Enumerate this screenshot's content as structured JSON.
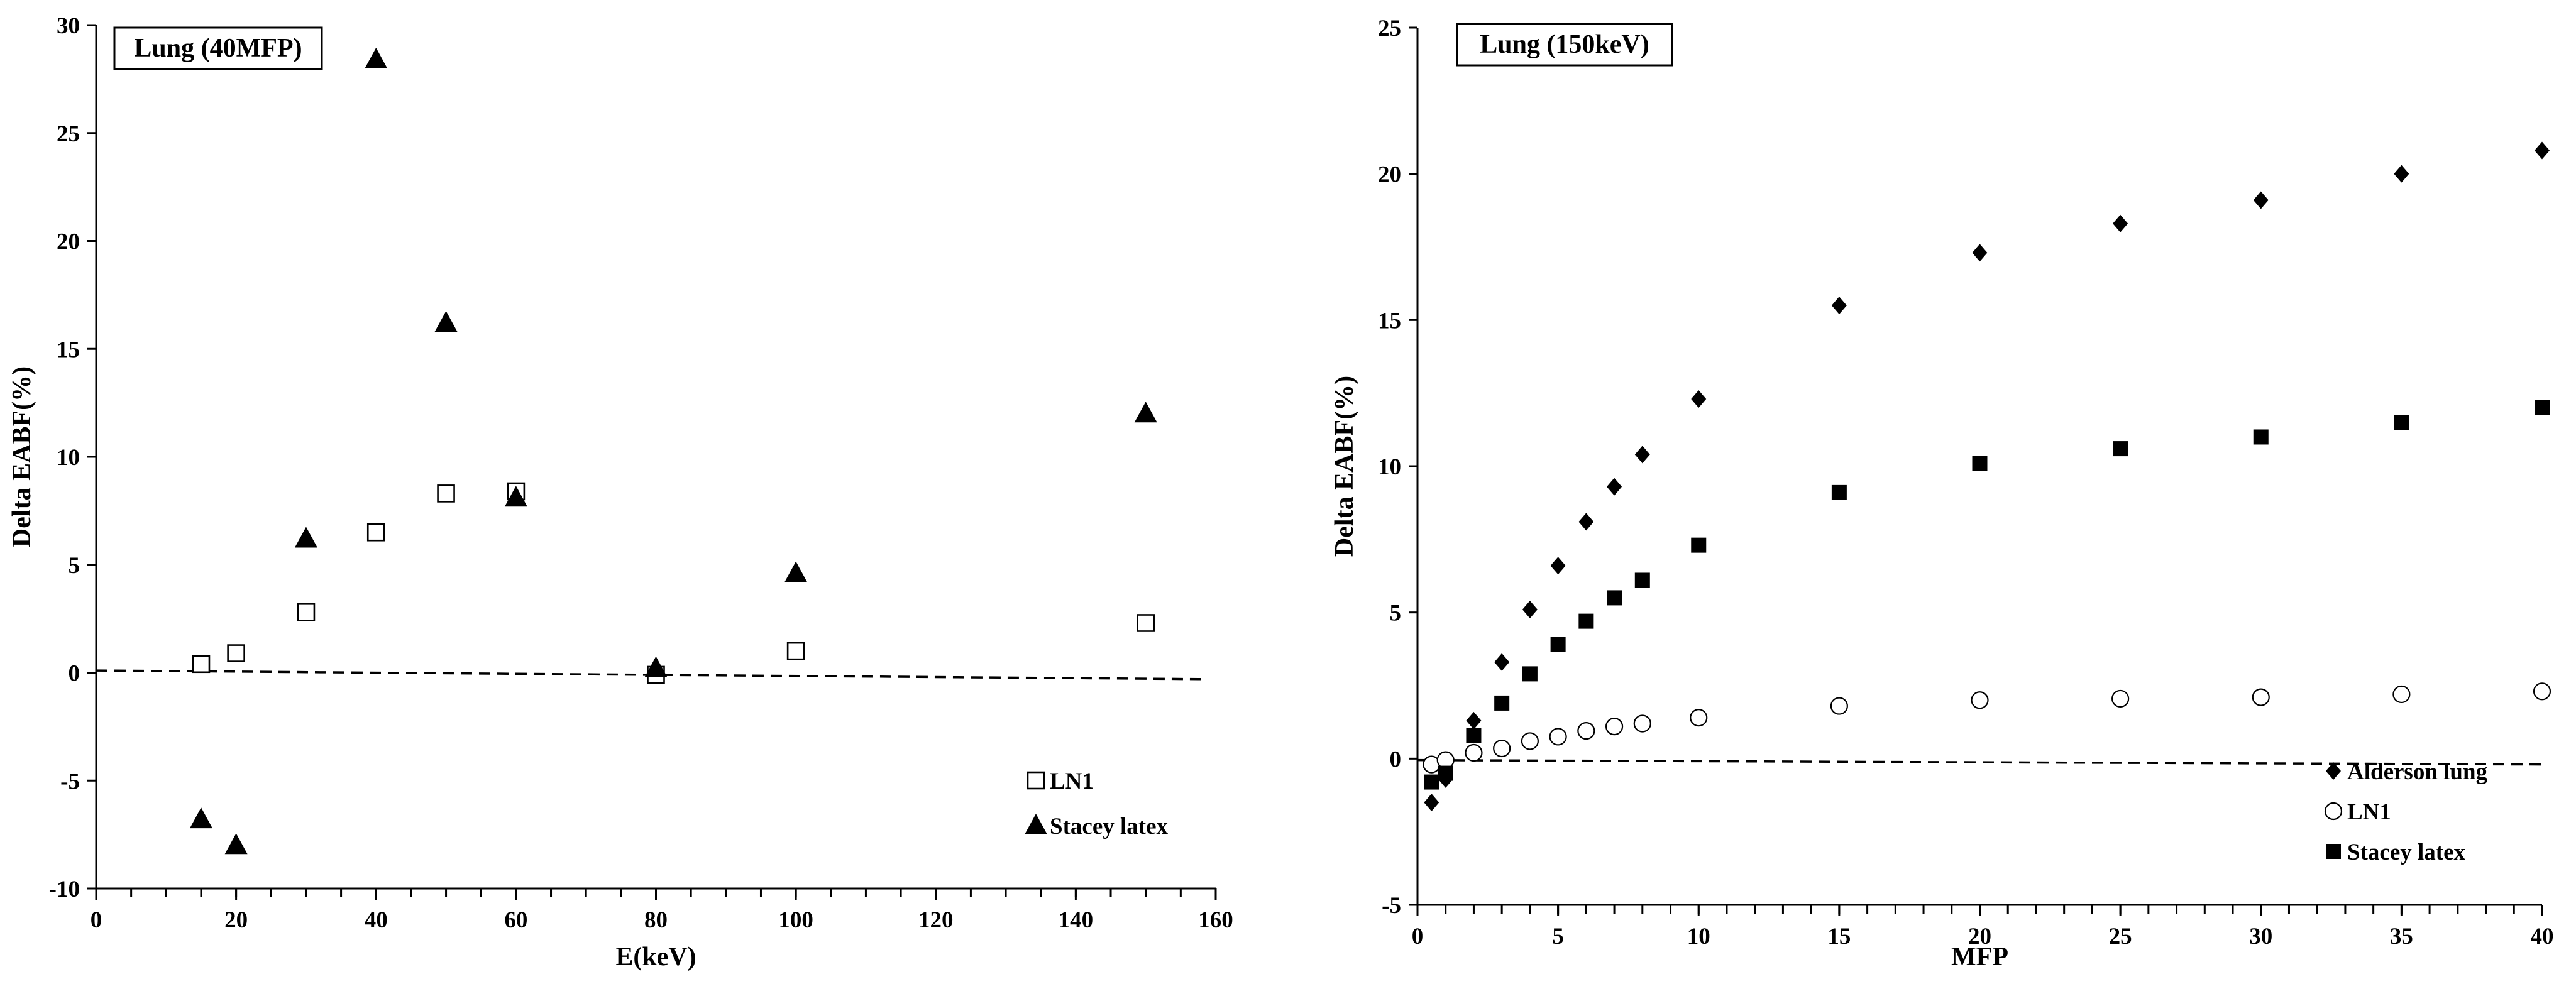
{
  "chart_data": [
    {
      "type": "scatter",
      "title": "Lung (40MFP)",
      "xlabel": "E(keV)",
      "ylabel": "Delta EABF(%)",
      "xlim": [
        0,
        160
      ],
      "ylim": [
        -10,
        30
      ],
      "xticks": [
        "0",
        "20",
        "40",
        "60",
        "80",
        "100",
        "120",
        "140",
        "160"
      ],
      "yticks": [
        "-10",
        "-5",
        "0",
        "5",
        "10",
        "15",
        "20",
        "25",
        "30"
      ],
      "x_major_step": 20,
      "x_minor_step": 5,
      "y_major_step": 5,
      "legend_position": "bottom-right",
      "series": [
        {
          "name": "LN1",
          "marker": "square-open",
          "x": [
            15,
            20,
            30,
            40,
            50,
            60,
            80,
            100,
            150
          ],
          "y": [
            0.4,
            0.9,
            2.8,
            6.5,
            8.3,
            8.4,
            -0.1,
            1.0,
            2.3
          ]
        },
        {
          "name": "Stacey latex",
          "marker": "triangle-filled",
          "x": [
            15,
            20,
            30,
            40,
            50,
            60,
            80,
            100,
            150
          ],
          "y": [
            -6.8,
            -8.0,
            6.2,
            28.4,
            16.2,
            8.1,
            0.2,
            4.6,
            12.0
          ]
        }
      ],
      "reference_line": {
        "style": "dashed",
        "x": [
          0,
          158
        ],
        "y": [
          0.1,
          -0.3
        ]
      }
    },
    {
      "type": "scatter",
      "title": "Lung (150keV)",
      "xlabel": "MFP",
      "ylabel": "Delta EABF(%)",
      "xlim": [
        0,
        40
      ],
      "ylim": [
        -5,
        25
      ],
      "xticks": [
        "0",
        "5",
        "10",
        "15",
        "20",
        "25",
        "30",
        "35",
        "40"
      ],
      "yticks": [
        "-5",
        "0",
        "5",
        "10",
        "15",
        "20",
        "25"
      ],
      "x_major_step": 5,
      "x_minor_step": 1,
      "y_major_step": 5,
      "legend_position": "bottom-right",
      "series": [
        {
          "name": "Alderson lung",
          "marker": "diamond-filled",
          "x": [
            0.5,
            1,
            2,
            3,
            4,
            5,
            6,
            7,
            8,
            10,
            15,
            20,
            25,
            30,
            35,
            40
          ],
          "y": [
            -1.5,
            -0.7,
            1.3,
            3.3,
            5.1,
            6.6,
            8.1,
            9.3,
            10.4,
            12.3,
            15.5,
            17.3,
            18.3,
            19.1,
            20.0,
            20.8
          ]
        },
        {
          "name": "LN1",
          "marker": "circle-open",
          "x": [
            0.5,
            1,
            2,
            3,
            4,
            5,
            6,
            7,
            8,
            10,
            15,
            20,
            25,
            30,
            35,
            40
          ],
          "y": [
            -0.2,
            -0.05,
            0.2,
            0.35,
            0.6,
            0.75,
            0.95,
            1.1,
            1.2,
            1.4,
            1.8,
            2.0,
            2.05,
            2.1,
            2.2,
            2.3
          ]
        },
        {
          "name": "Stacey latex",
          "marker": "square-filled",
          "x": [
            0.5,
            1,
            2,
            3,
            4,
            5,
            6,
            7,
            8,
            10,
            15,
            20,
            25,
            30,
            35,
            40
          ],
          "y": [
            -0.8,
            -0.5,
            0.8,
            1.9,
            2.9,
            3.9,
            4.7,
            5.5,
            6.1,
            7.3,
            9.1,
            10.1,
            10.6,
            11.0,
            11.5,
            12.0
          ]
        }
      ],
      "reference_line": {
        "style": "dashed",
        "x": [
          0,
          40
        ],
        "y": [
          -0.05,
          -0.2
        ]
      }
    }
  ]
}
